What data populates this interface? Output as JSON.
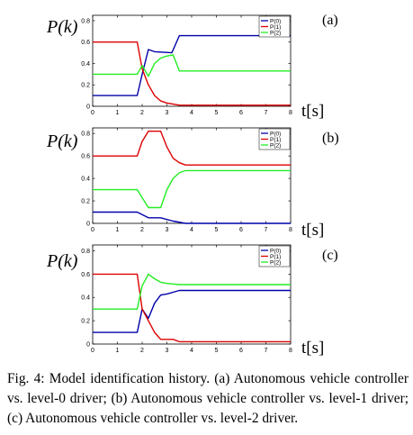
{
  "caption": "Fig. 4: Model identification history. (a) Autonomous vehicle controller vs. level-0 driver; (b) Autonomous vehicle controller vs. level-1 driver; (c) Autonomous vehicle controller vs. level-2 driver.",
  "colors": {
    "P0": "#0000aa",
    "P1": "#dd0000",
    "P2": "#22ee22"
  },
  "chart_data": [
    {
      "type": "line",
      "panel_label": "(a)",
      "ylabel": "P(k)",
      "xlabel": "t[s]",
      "xlim": [
        0,
        8
      ],
      "ylim": [
        0,
        0.85
      ],
      "xticks": [
        "0",
        "1",
        "2",
        "3",
        "4",
        "5",
        "6",
        "7",
        "8"
      ],
      "yticks": [
        "0",
        "0.2",
        "0.4",
        "0.6",
        "0.8"
      ],
      "legend": "top-right",
      "series": [
        {
          "name": "P(0)",
          "color": "#0000aa",
          "x": [
            0,
            1.8,
            2.0,
            2.25,
            2.5,
            3.2,
            3.5,
            8
          ],
          "y": [
            0.1,
            0.1,
            0.3,
            0.53,
            0.51,
            0.5,
            0.66,
            0.66
          ]
        },
        {
          "name": "P(1)",
          "color": "#dd0000",
          "x": [
            0,
            1.8,
            2.0,
            2.25,
            2.5,
            2.75,
            3.0,
            3.25,
            3.5,
            8
          ],
          "y": [
            0.6,
            0.6,
            0.35,
            0.2,
            0.1,
            0.05,
            0.03,
            0.02,
            0.01,
            0.01
          ]
        },
        {
          "name": "P(2)",
          "color": "#22ee22",
          "x": [
            0,
            1.8,
            2.0,
            2.25,
            2.5,
            2.75,
            3.0,
            3.25,
            3.5,
            8
          ],
          "y": [
            0.3,
            0.3,
            0.38,
            0.28,
            0.4,
            0.45,
            0.47,
            0.48,
            0.33,
            0.33
          ]
        }
      ]
    },
    {
      "type": "line",
      "panel_label": "(b)",
      "ylabel": "P(k)",
      "xlabel": "t[s]",
      "xlim": [
        0,
        8
      ],
      "ylim": [
        0,
        0.85
      ],
      "xticks": [
        "0",
        "1",
        "2",
        "3",
        "4",
        "5",
        "6",
        "7",
        "8"
      ],
      "yticks": [
        "0",
        "0.2",
        "0.4",
        "0.6",
        "0.8"
      ],
      "legend": "top-right",
      "series": [
        {
          "name": "P(0)",
          "color": "#0000aa",
          "x": [
            0,
            1.8,
            2.25,
            2.75,
            3.25,
            3.75,
            8
          ],
          "y": [
            0.1,
            0.1,
            0.05,
            0.05,
            0.02,
            0.0,
            0.0
          ]
        },
        {
          "name": "P(1)",
          "color": "#dd0000",
          "x": [
            0,
            1.8,
            2.0,
            2.25,
            2.75,
            3.0,
            3.25,
            3.5,
            3.75,
            8
          ],
          "y": [
            0.6,
            0.6,
            0.73,
            0.82,
            0.82,
            0.68,
            0.58,
            0.54,
            0.52,
            0.52
          ]
        },
        {
          "name": "P(2)",
          "color": "#22ee22",
          "x": [
            0,
            1.8,
            2.25,
            2.75,
            3.0,
            3.25,
            3.5,
            3.75,
            8
          ],
          "y": [
            0.3,
            0.3,
            0.14,
            0.14,
            0.3,
            0.4,
            0.45,
            0.47,
            0.47
          ]
        }
      ]
    },
    {
      "type": "line",
      "panel_label": "(c)",
      "ylabel": "P(k)",
      "xlabel": "t[s]",
      "xlim": [
        0,
        8
      ],
      "ylim": [
        0,
        0.85
      ],
      "xticks": [
        "0",
        "1",
        "2",
        "3",
        "4",
        "5",
        "6",
        "7",
        "8"
      ],
      "yticks": [
        "0",
        "0.2",
        "0.4",
        "0.6",
        "0.8"
      ],
      "legend": "top-right",
      "series": [
        {
          "name": "P(0)",
          "color": "#0000aa",
          "x": [
            0,
            1.8,
            2.0,
            2.25,
            2.5,
            2.75,
            3.0,
            3.5,
            8
          ],
          "y": [
            0.1,
            0.1,
            0.3,
            0.22,
            0.35,
            0.42,
            0.43,
            0.46,
            0.46
          ]
        },
        {
          "name": "P(1)",
          "color": "#dd0000",
          "x": [
            0,
            1.8,
            2.0,
            2.25,
            2.5,
            2.75,
            3.0,
            3.25,
            3.5,
            8
          ],
          "y": [
            0.6,
            0.6,
            0.3,
            0.2,
            0.1,
            0.04,
            0.04,
            0.04,
            0.02,
            0.02
          ]
        },
        {
          "name": "P(2)",
          "color": "#22ee22",
          "x": [
            0,
            1.8,
            2.0,
            2.25,
            2.5,
            2.75,
            3.0,
            3.5,
            8
          ],
          "y": [
            0.3,
            0.3,
            0.5,
            0.6,
            0.56,
            0.53,
            0.52,
            0.51,
            0.51
          ]
        }
      ]
    }
  ]
}
